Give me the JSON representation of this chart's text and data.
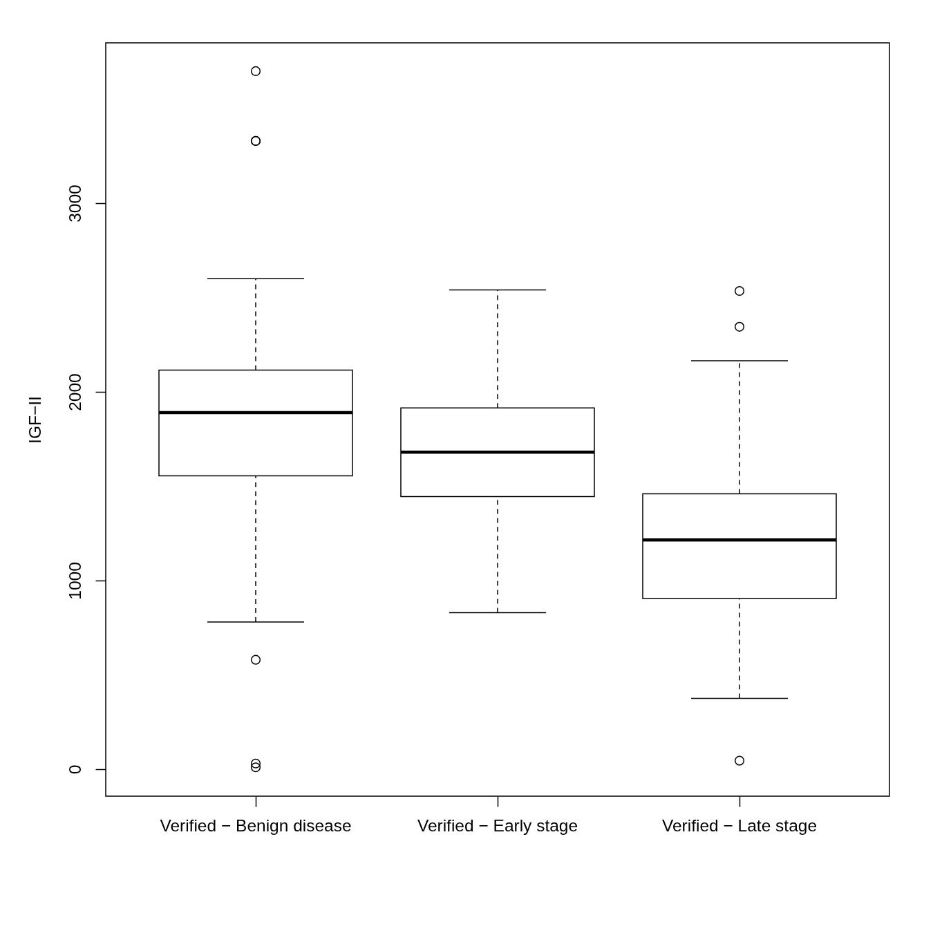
{
  "chart_data": {
    "type": "box",
    "ylabel": "IGF−II",
    "categories": [
      "Verified − Benign disease",
      "Verified − Early stage",
      "Verified − Late stage"
    ],
    "boxes": [
      {
        "low": 780,
        "q1": 1555,
        "median": 1890,
        "q3": 2115,
        "high": 2600,
        "outliers": [
          3700,
          3330,
          3330,
          580,
          30,
          10
        ]
      },
      {
        "low": 830,
        "q1": 1445,
        "median": 1680,
        "q3": 1915,
        "high": 2540
      },
      {
        "low": 375,
        "q1": 905,
        "median": 1215,
        "q3": 1460,
        "high": 2165,
        "outliers": [
          2535,
          2345,
          45
        ]
      }
    ],
    "ylim": [
      -143,
      3850
    ],
    "yticks": [
      0,
      1000,
      2000,
      3000
    ]
  }
}
